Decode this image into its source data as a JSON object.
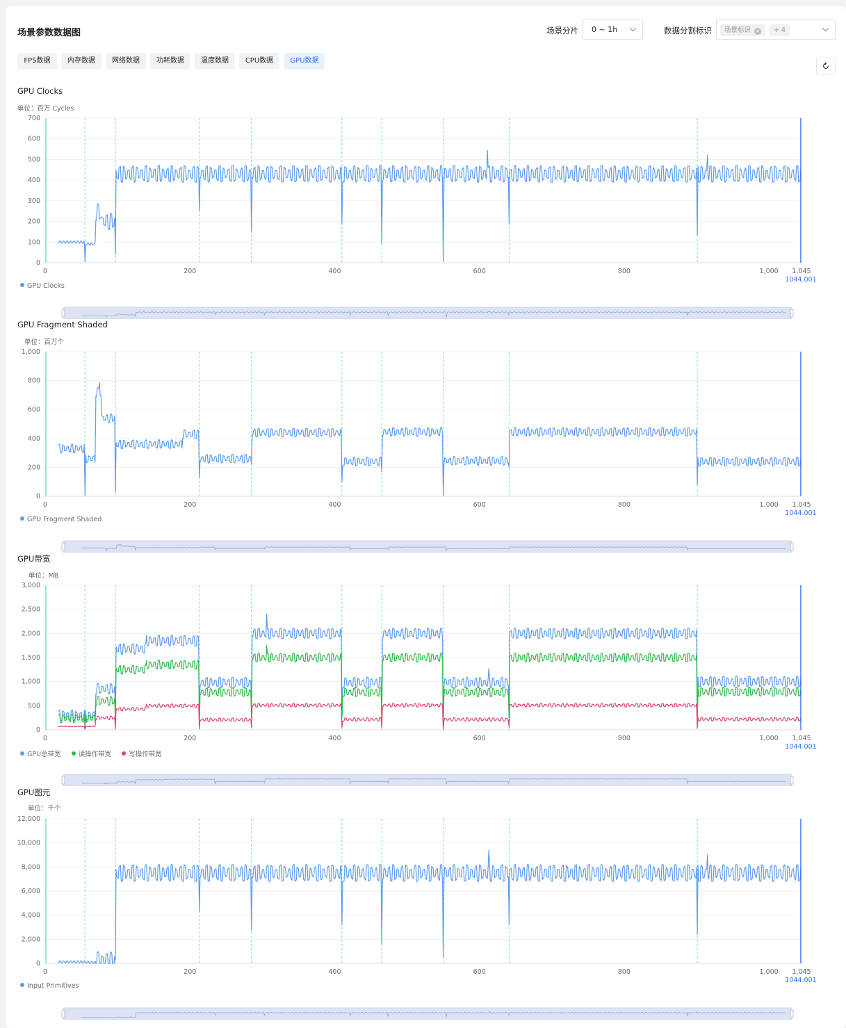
{
  "header": {
    "title": "场景参数数据图",
    "slice_label": "场景分片",
    "slice_value": "0 ~ 1h",
    "split_label": "数据分割标识",
    "split_tag": "场景标识",
    "split_more": "+ 4"
  },
  "tabs": [
    {
      "label": "FPS数据",
      "active": false
    },
    {
      "label": "内存数据",
      "active": false
    },
    {
      "label": "网络数据",
      "active": false
    },
    {
      "label": "功耗数据",
      "active": false
    },
    {
      "label": "温度数据",
      "active": false
    },
    {
      "label": "CPU数据",
      "active": false
    },
    {
      "label": "GPU数据",
      "active": true
    }
  ],
  "icons": {
    "refresh": "refresh-icon",
    "chevron": "chevron-down-icon",
    "close": "close-icon"
  },
  "colors": {
    "blue": "#5b9bf0",
    "green": "#2db84d",
    "pink": "#e0427a",
    "accent": "#3370ff",
    "marker": "#6fd3c9"
  },
  "chart_data": [
    {
      "type": "line",
      "title": "GPU Clocks",
      "unit": "单位：百万 Cycles",
      "ylim": [
        0,
        700
      ],
      "yticks": [
        0,
        100,
        200,
        300,
        400,
        500,
        600,
        700
      ],
      "ytick_labels": [
        "0",
        "100",
        "200",
        "300",
        "400",
        "500",
        "600",
        "700"
      ],
      "xlim": [
        0,
        1045
      ],
      "xticks": [
        0,
        200,
        400,
        600,
        800,
        1000,
        1045
      ],
      "xtick_labels": [
        "0",
        "200",
        "400",
        "600",
        "800",
        "1,000",
        "1,045"
      ],
      "cursor_label": "1044.001",
      "scene_markers": [
        55,
        97,
        213,
        285,
        410,
        465,
        550,
        641,
        901
      ],
      "series": [
        {
          "name": "GPU Clocks",
          "color": "#5b9bf0",
          "segments": [
            [
              0,
              55,
              100
            ],
            [
              55,
              70,
              90
            ],
            [
              70,
              78,
              245
            ],
            [
              78,
              97,
              200
            ],
            [
              97,
              1044,
              430
            ]
          ],
          "amplitude": 40,
          "spikes": [
            [
              55,
              5
            ],
            [
              97,
              40
            ],
            [
              213,
              250
            ],
            [
              285,
              155
            ],
            [
              410,
              185
            ],
            [
              465,
              90
            ],
            [
              550,
              5
            ],
            [
              611,
              545
            ],
            [
              641,
              185
            ],
            [
              901,
              135
            ],
            [
              915,
              520
            ]
          ]
        }
      ]
    },
    {
      "type": "line",
      "title": "GPU Fragment Shaded",
      "unit": "单位：百万个",
      "ylim": [
        0,
        1000
      ],
      "yticks": [
        0,
        200,
        400,
        600,
        800,
        1000
      ],
      "ytick_labels": [
        "0",
        "200",
        "400",
        "600",
        "800",
        "1,000"
      ],
      "xlim": [
        0,
        1045
      ],
      "xticks": [
        0,
        200,
        400,
        600,
        800,
        1000,
        1045
      ],
      "xtick_labels": [
        "0",
        "200",
        "400",
        "600",
        "800",
        "1,000",
        "1,045"
      ],
      "cursor_label": "1044.001",
      "scene_markers": [
        55,
        97,
        213,
        285,
        410,
        465,
        550,
        641,
        901
      ],
      "series": [
        {
          "name": "GPU Fragment Shaded",
          "color": "#5b9bf0",
          "segments": [
            [
              0,
              55,
              330
            ],
            [
              55,
              70,
              260
            ],
            [
              70,
              78,
              720
            ],
            [
              78,
              97,
              540
            ],
            [
              97,
              190,
              360
            ],
            [
              190,
              213,
              430
            ],
            [
              213,
              285,
              260
            ],
            [
              285,
              410,
              440
            ],
            [
              410,
              465,
              240
            ],
            [
              465,
              550,
              445
            ],
            [
              550,
              641,
              245
            ],
            [
              641,
              901,
              445
            ],
            [
              901,
              1044,
              240
            ]
          ],
          "amplitude": 30,
          "spikes": [
            [
              55,
              5
            ],
            [
              75,
              785
            ],
            [
              97,
              30
            ],
            [
              213,
              130
            ],
            [
              285,
              220
            ],
            [
              410,
              100
            ],
            [
              465,
              170
            ],
            [
              550,
              5
            ],
            [
              641,
              200
            ],
            [
              901,
              80
            ]
          ]
        }
      ]
    },
    {
      "type": "line",
      "title": "GPU带宽",
      "unit": "单位：MB",
      "ylim": [
        0,
        3000
      ],
      "yticks": [
        0,
        500,
        1000,
        1500,
        2000,
        2500,
        3000
      ],
      "ytick_labels": [
        "0",
        "500",
        "1,000",
        "1,500",
        "2,000",
        "2,500",
        "3,000"
      ],
      "xlim": [
        0,
        1045
      ],
      "xticks": [
        0,
        200,
        400,
        600,
        800,
        1000,
        1045
      ],
      "xtick_labels": [
        "0",
        "200",
        "400",
        "600",
        "800",
        "1,000",
        "1,045"
      ],
      "cursor_label": "1044.001",
      "scene_markers": [
        55,
        97,
        213,
        285,
        410,
        465,
        550,
        641,
        901
      ],
      "series": [
        {
          "name": "GPU总带宽",
          "color": "#5b9bf0",
          "segments": [
            [
              0,
              70,
              300
            ],
            [
              70,
              97,
              850
            ],
            [
              97,
              140,
              1680
            ],
            [
              140,
              213,
              1850
            ],
            [
              213,
              285,
              980
            ],
            [
              285,
              410,
              2000
            ],
            [
              410,
              465,
              980
            ],
            [
              465,
              550,
              2000
            ],
            [
              550,
              641,
              980
            ],
            [
              641,
              901,
              2000
            ],
            [
              901,
              1044,
              1000
            ]
          ],
          "amplitude": 110,
          "spikes": [
            [
              55,
              50
            ],
            [
              97,
              100
            ],
            [
              213,
              80
            ],
            [
              285,
              300
            ],
            [
              306,
              2400
            ],
            [
              410,
              300
            ],
            [
              465,
              200
            ],
            [
              550,
              30
            ],
            [
              613,
              1270
            ],
            [
              641,
              250
            ],
            [
              901,
              100
            ]
          ]
        },
        {
          "name": "读操作带宽",
          "color": "#2db84d",
          "segments": [
            [
              0,
              70,
              240
            ],
            [
              70,
              97,
              600
            ],
            [
              97,
              140,
              1250
            ],
            [
              140,
              213,
              1350
            ],
            [
              213,
              285,
              780
            ],
            [
              285,
              410,
              1500
            ],
            [
              410,
              465,
              780
            ],
            [
              465,
              550,
              1500
            ],
            [
              550,
              641,
              780
            ],
            [
              641,
              901,
              1500
            ],
            [
              901,
              1044,
              790
            ]
          ],
          "amplitude": 90,
          "spikes": [
            [
              55,
              40
            ],
            [
              97,
              80
            ],
            [
              213,
              60
            ],
            [
              285,
              250
            ],
            [
              306,
              1750
            ],
            [
              410,
              250
            ],
            [
              465,
              150
            ],
            [
              550,
              20
            ],
            [
              641,
              200
            ],
            [
              901,
              80
            ]
          ]
        },
        {
          "name": "写操作带宽",
          "color": "#e0427a",
          "segments": [
            [
              0,
              70,
              70
            ],
            [
              70,
              97,
              250
            ],
            [
              97,
              140,
              430
            ],
            [
              140,
              213,
              500
            ],
            [
              213,
              285,
              210
            ],
            [
              285,
              410,
              510
            ],
            [
              410,
              465,
              215
            ],
            [
              465,
              550,
              510
            ],
            [
              550,
              641,
              215
            ],
            [
              641,
              901,
              510
            ],
            [
              901,
              1044,
              220
            ]
          ],
          "amplitude": 35,
          "spikes": [
            [
              55,
              10
            ],
            [
              97,
              20
            ],
            [
              213,
              20
            ],
            [
              285,
              50
            ],
            [
              410,
              50
            ],
            [
              465,
              40
            ],
            [
              550,
              10
            ],
            [
              641,
              50
            ],
            [
              901,
              30
            ]
          ]
        }
      ]
    },
    {
      "type": "line",
      "title": "GPU图元",
      "unit": "单位：千个",
      "ylim": [
        0,
        12000
      ],
      "yticks": [
        0,
        2000,
        4000,
        6000,
        8000,
        10000,
        12000
      ],
      "ytick_labels": [
        "0",
        "2,000",
        "4,000",
        "6,000",
        "8,000",
        "10,000",
        "12,000"
      ],
      "xlim": [
        0,
        1045
      ],
      "xticks": [
        0,
        200,
        400,
        600,
        800,
        1000,
        1045
      ],
      "xtick_labels": [
        "0",
        "200",
        "400",
        "600",
        "800",
        "1,000",
        "1,045"
      ],
      "cursor_label": "1044.001",
      "scene_markers": [
        55,
        97,
        213,
        285,
        410,
        465,
        550,
        641,
        901
      ],
      "series": [
        {
          "name": "Input Primitives",
          "color": "#5b9bf0",
          "segments": [
            [
              0,
              55,
              120
            ],
            [
              55,
              70,
              80
            ],
            [
              70,
              97,
              260
            ],
            [
              97,
              1044,
              7500
            ]
          ],
          "amplitude": 700,
          "spikes": [
            [
              97,
              300
            ],
            [
              213,
              4300
            ],
            [
              285,
              2800
            ],
            [
              410,
              3200
            ],
            [
              465,
              1600
            ],
            [
              550,
              500
            ],
            [
              613,
              9400
            ],
            [
              641,
              3200
            ],
            [
              901,
              2400
            ],
            [
              915,
              9000
            ]
          ]
        }
      ]
    }
  ]
}
